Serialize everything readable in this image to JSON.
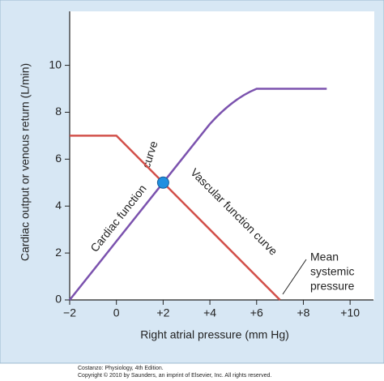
{
  "chart_data": {
    "type": "line",
    "xlabel": "Right atrial pressure (mm Hg)",
    "ylabel": "Cardiac output or venous return (L/min)",
    "xlim": [
      -2,
      11
    ],
    "ylim": [
      0,
      12.3
    ],
    "xticks": [
      {
        "value": -2,
        "label": "−2"
      },
      0,
      {
        "value": 2,
        "label": "+2"
      },
      {
        "value": 4,
        "label": "+4"
      },
      {
        "value": 6,
        "label": "+6"
      },
      {
        "value": 8,
        "label": "+8"
      },
      {
        "value": 10,
        "label": "+10"
      }
    ],
    "yticks": [
      0,
      2,
      4,
      6,
      8,
      10
    ],
    "series": [
      {
        "name": "Cardiac function curve",
        "color": "#7b52ae",
        "x": [
          -2,
          0,
          2,
          4,
          5,
          6,
          7,
          9
        ],
        "values": [
          0,
          2.5,
          5,
          7.5,
          8.6,
          9,
          9,
          9
        ]
      },
      {
        "name": "Vascular function curve",
        "color": "#d2504a",
        "x": [
          -2,
          0,
          2,
          7
        ],
        "values": [
          7,
          7,
          5,
          0
        ]
      }
    ],
    "intersection": {
      "x": 2,
      "value": 5,
      "color": "#1f8fe0"
    },
    "annotations": {
      "cardiac_1": "Cardiac function",
      "cardiac_2": "curve",
      "mean": [
        "Mean",
        "systemic",
        "pressure"
      ]
    },
    "footer": [
      "Costanzo: Physiology, 4th Edition.",
      "Copyright © 2010 by Saunders, an imprint of Elsevier, Inc. All rights reserved."
    ]
  }
}
